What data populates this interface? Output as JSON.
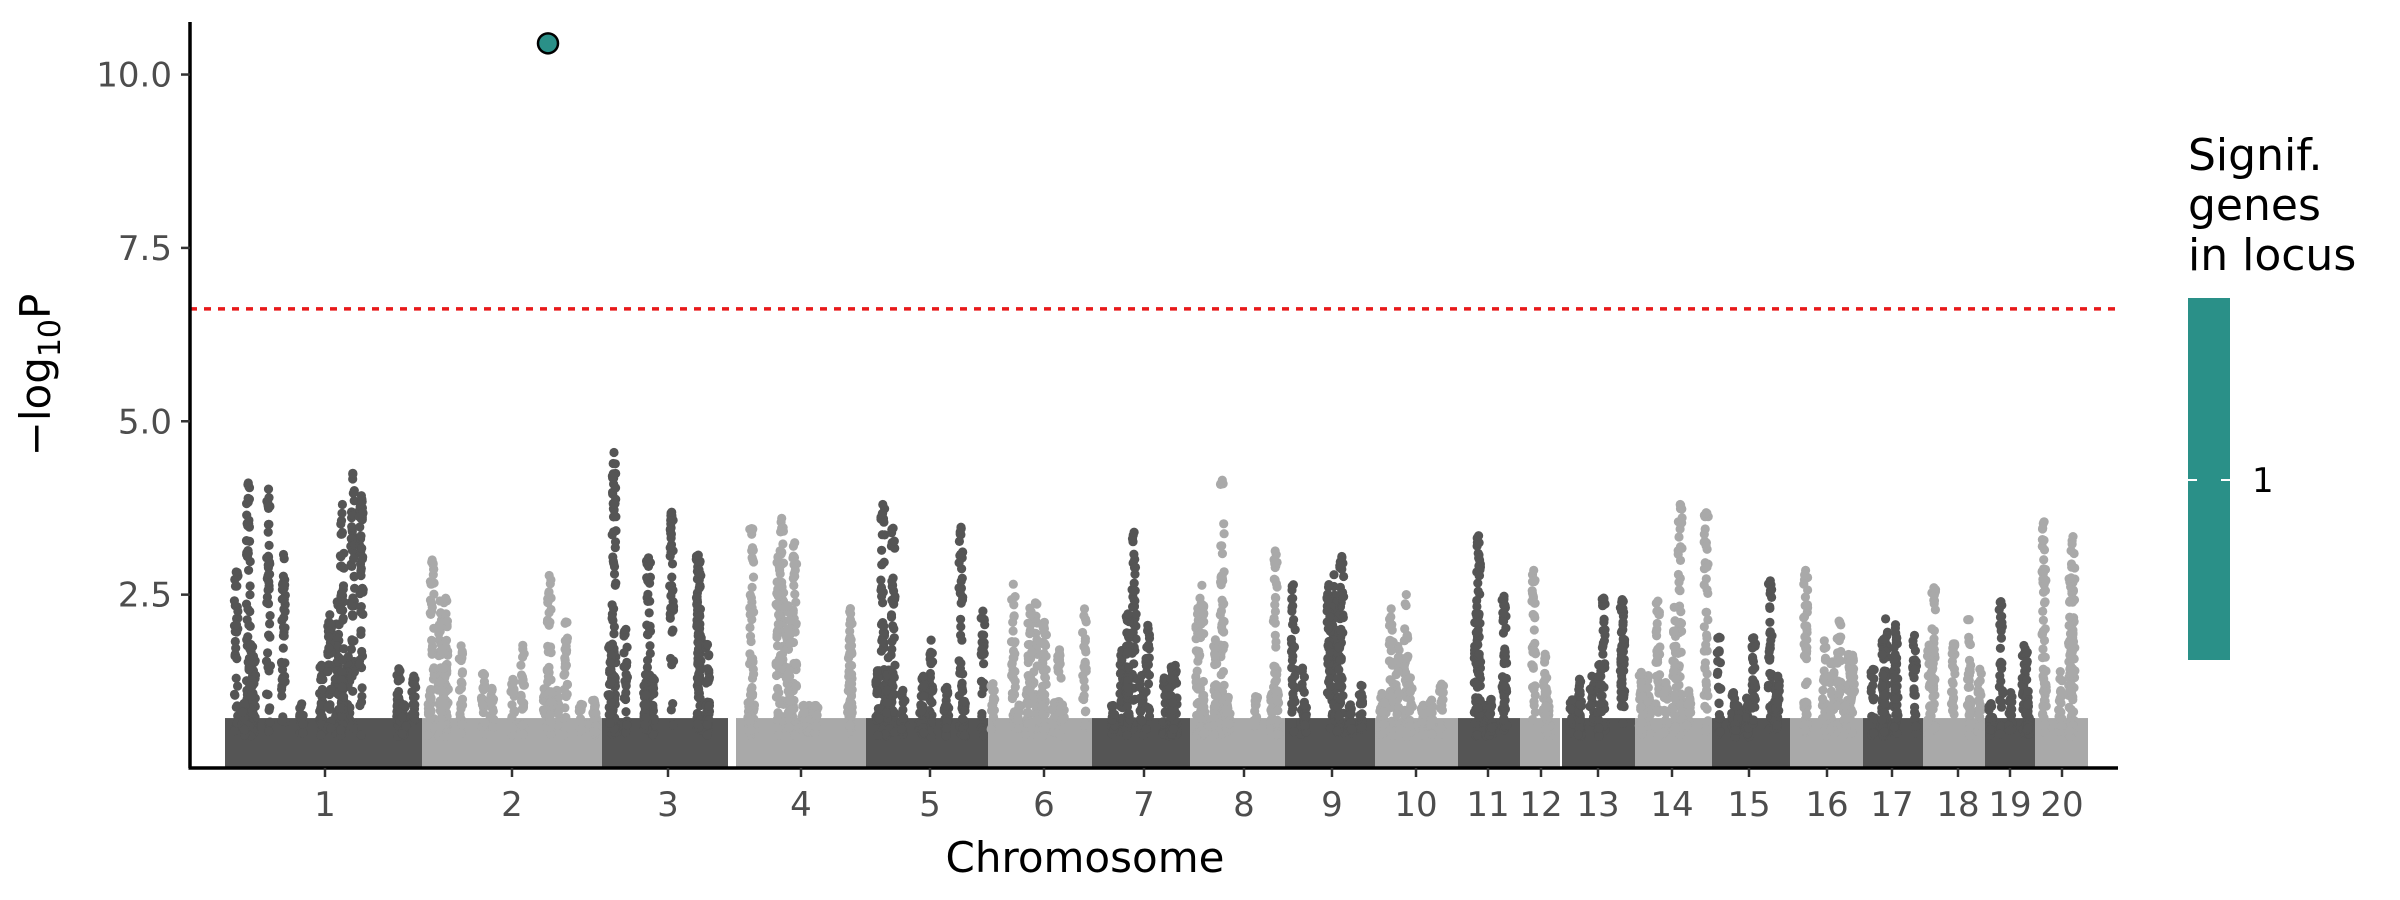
{
  "chart_data": {
    "type": "scatter",
    "subtype": "manhattan",
    "xlabel": "Chromosome",
    "ylabel_parts": [
      "−log",
      "10",
      "P"
    ],
    "y_ticks": [
      "2.5",
      "5.0",
      "7.5",
      "10.0"
    ],
    "ylim": [
      0,
      10.7
    ],
    "significance_threshold": 6.62,
    "threshold_color": "#e8191a",
    "chromosomes": [
      {
        "label": "1",
        "color": "#555555",
        "max": 4.25
      },
      {
        "label": "2",
        "color": "#a9a9a9",
        "max": 3.0
      },
      {
        "label": "3",
        "color": "#555555",
        "max": 4.55
      },
      {
        "label": "4",
        "color": "#a9a9a9",
        "max": 3.6
      },
      {
        "label": "5",
        "color": "#555555",
        "max": 3.8
      },
      {
        "label": "6",
        "color": "#a9a9a9",
        "max": 2.65
      },
      {
        "label": "7",
        "color": "#555555",
        "max": 3.4
      },
      {
        "label": "8",
        "color": "#a9a9a9",
        "max": 4.15
      },
      {
        "label": "9",
        "color": "#555555",
        "max": 3.05
      },
      {
        "label": "10",
        "color": "#a9a9a9",
        "max": 2.5
      },
      {
        "label": "11",
        "color": "#555555",
        "max": 3.35
      },
      {
        "label": "12",
        "color": "#a9a9a9",
        "max": 2.85
      },
      {
        "label": "13",
        "color": "#555555",
        "max": 2.45
      },
      {
        "label": "14",
        "color": "#a9a9a9",
        "max": 3.8
      },
      {
        "label": "15",
        "color": "#555555",
        "max": 2.7
      },
      {
        "label": "16",
        "color": "#a9a9a9",
        "max": 2.85
      },
      {
        "label": "17",
        "color": "#555555",
        "max": 2.15
      },
      {
        "label": "18",
        "color": "#a9a9a9",
        "max": 2.6
      },
      {
        "label": "19",
        "color": "#555555",
        "max": 2.4
      },
      {
        "label": "20",
        "color": "#a9a9a9",
        "max": 3.55
      }
    ],
    "highlighted_points": [
      {
        "chromosome": "2",
        "y": 10.45,
        "color": "#2a9088",
        "signif_genes": 1
      }
    ],
    "legend": {
      "title_lines": [
        "Signif.",
        "genes",
        "in locus"
      ],
      "color": "#2a9088",
      "labels": [
        "1"
      ]
    },
    "grid": false
  }
}
